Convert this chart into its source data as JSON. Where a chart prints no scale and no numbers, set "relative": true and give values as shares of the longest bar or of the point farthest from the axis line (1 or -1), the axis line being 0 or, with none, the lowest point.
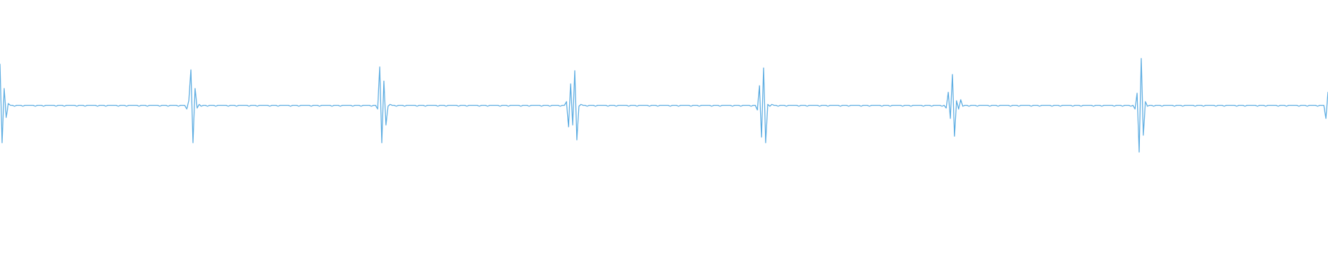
{
  "chart_data": {
    "type": "line",
    "relative": true,
    "color": "#5dade2",
    "categories": [
      null,
      null,
      null,
      null,
      null,
      null,
      null,
      null,
      null,
      null,
      null,
      null,
      null,
      null,
      null,
      null,
      null,
      null,
      null,
      null,
      null,
      null,
      null,
      null,
      null,
      null,
      null,
      null,
      null,
      null,
      null,
      null,
      null,
      null,
      null,
      null,
      null,
      null,
      null,
      null,
      null,
      null,
      null,
      null,
      null,
      null,
      null,
      null,
      null,
      null,
      null,
      null,
      null,
      null,
      null,
      null,
      null,
      null,
      null,
      null,
      null,
      null,
      null,
      null,
      null,
      null,
      null,
      null,
      null,
      null,
      null,
      null,
      null,
      null,
      null,
      null,
      null,
      null,
      null,
      null,
      null,
      null,
      null,
      null,
      null,
      null,
      null,
      null,
      null,
      null,
      null,
      null,
      null,
      null,
      null,
      null,
      null,
      null,
      null,
      null,
      null,
      null,
      null,
      null,
      null,
      null,
      null,
      null,
      null,
      null,
      null,
      null,
      null,
      null,
      null,
      null,
      null,
      null,
      null,
      null,
      null,
      null,
      null,
      null,
      null,
      null,
      null,
      null,
      null,
      null,
      null,
      null,
      null,
      null,
      null,
      null,
      null,
      null,
      null,
      null,
      null,
      null,
      null,
      null,
      null,
      null,
      null,
      null,
      null,
      null,
      null,
      null,
      null,
      null,
      null,
      null,
      null,
      null,
      null,
      null,
      null,
      null,
      null,
      null,
      null,
      null,
      null,
      null,
      null,
      null,
      null,
      null,
      null,
      null,
      null,
      null,
      null,
      null,
      null,
      null,
      null,
      null,
      null,
      null,
      null,
      null,
      null,
      null,
      null,
      null,
      null,
      null,
      null,
      null,
      null,
      null,
      null,
      null,
      null,
      null,
      null,
      null,
      null,
      null,
      null,
      null,
      null,
      null,
      null,
      null,
      null,
      null,
      null,
      null,
      null,
      null,
      null,
      null,
      null,
      null,
      null,
      null,
      null,
      null,
      null,
      null,
      null,
      null,
      null,
      null,
      null,
      null,
      null,
      null,
      null,
      null,
      null,
      null,
      null,
      null,
      null,
      null,
      null,
      null,
      null,
      null,
      null,
      null,
      null,
      null,
      null,
      null,
      null,
      null,
      null,
      null,
      null,
      null,
      null,
      null,
      null,
      null,
      null,
      null,
      null,
      null,
      null,
      null,
      null,
      null,
      null,
      null,
      null,
      null,
      null,
      null,
      null,
      null,
      null,
      null,
      null,
      null,
      null,
      null,
      null,
      null,
      null,
      null,
      null,
      null,
      null,
      null,
      null,
      null,
      null,
      null,
      null,
      null,
      null,
      null,
      null,
      null,
      null,
      null,
      null,
      null,
      null,
      null,
      null,
      null,
      null,
      null,
      null,
      null,
      null,
      null,
      null,
      null,
      null,
      null,
      null,
      null,
      null,
      null,
      null,
      null,
      null,
      null,
      null,
      null,
      null,
      null,
      null,
      null,
      null,
      null,
      null,
      null,
      null,
      null,
      null,
      null,
      null,
      null,
      null,
      null,
      null,
      null,
      null,
      null,
      null,
      null,
      null,
      null,
      null,
      null,
      null,
      null,
      null,
      null,
      null,
      null,
      null,
      null,
      null,
      null,
      null,
      null,
      null,
      null,
      null,
      null,
      null,
      null,
      null,
      null,
      null,
      null,
      null,
      null,
      null,
      null,
      null,
      null,
      null,
      null,
      null,
      null,
      null,
      null,
      null,
      null,
      null,
      null,
      null,
      null,
      null,
      null,
      null,
      null,
      null,
      null,
      null,
      null,
      null,
      null,
      null,
      null,
      null,
      null,
      null,
      null,
      null,
      null,
      null,
      null,
      null,
      null,
      null,
      null,
      null,
      null,
      null,
      null,
      null,
      null,
      null,
      null,
      null,
      null,
      null,
      null,
      null,
      null,
      null,
      null,
      null,
      null,
      null,
      null,
      null,
      null,
      null,
      null,
      null,
      null,
      null,
      null,
      null,
      null,
      null,
      null,
      null,
      null,
      null,
      null,
      null,
      null,
      null,
      null,
      null,
      null,
      null,
      null,
      null,
      null,
      null,
      null,
      null,
      null,
      null,
      null,
      null,
      null,
      null,
      null,
      null,
      null,
      null,
      null,
      null,
      null,
      null,
      null,
      null,
      null,
      null,
      null,
      null,
      null,
      null,
      null,
      null,
      null,
      null,
      null,
      null,
      null,
      null,
      null,
      null,
      null,
      null,
      null,
      null,
      null,
      null,
      null,
      null,
      null,
      null,
      null,
      null,
      null,
      null,
      null,
      null,
      null,
      null,
      null,
      null,
      null,
      null,
      null,
      null,
      null,
      null,
      null,
      null,
      null,
      null,
      null,
      null,
      null,
      null,
      null,
      null,
      null,
      null,
      null,
      null,
      null,
      null,
      null,
      null,
      null,
      null,
      null,
      null,
      null,
      null,
      null,
      null,
      null,
      null,
      null,
      null,
      null,
      null,
      null,
      null,
      null,
      null,
      null,
      null,
      null,
      null,
      null,
      null,
      null,
      null,
      null,
      null,
      null,
      null,
      null,
      null,
      null,
      null,
      null,
      null,
      null,
      null,
      null,
      null,
      null,
      null,
      null,
      null,
      null,
      null,
      null,
      null,
      null,
      null,
      null,
      null,
      null,
      null,
      null,
      null,
      null,
      null,
      null,
      null,
      null,
      null,
      null,
      null,
      null,
      null,
      null,
      null,
      null,
      null,
      null,
      null,
      null,
      null,
      null,
      null,
      null,
      null,
      null,
      null,
      null,
      null,
      null,
      null,
      null,
      null,
      null,
      null,
      null,
      null,
      null,
      null,
      null,
      null,
      null,
      null
    ],
    "values": [
      0.94,
      0.1,
      0.68,
      0.37,
      0.52,
      0.5,
      0.5,
      0.49,
      0.5,
      0.5,
      0.5,
      0.49,
      0.5,
      0.5,
      0.5,
      0.5,
      0.5,
      0.49,
      0.5,
      0.5,
      0.5,
      0.49,
      0.5,
      0.5,
      0.5,
      0.5,
      0.5,
      0.49,
      0.5,
      0.5,
      0.5,
      0.49,
      0.5,
      0.5,
      0.5,
      0.5,
      0.5,
      0.49,
      0.5,
      0.5,
      0.5,
      0.49,
      0.5,
      0.5,
      0.5,
      0.5,
      0.5,
      0.49,
      0.5,
      0.5,
      0.5,
      0.49,
      0.5,
      0.5,
      0.5,
      0.5,
      0.5,
      0.49,
      0.5,
      0.5,
      0.5,
      0.49,
      0.5,
      0.5,
      0.5,
      0.5,
      0.5,
      0.49,
      0.5,
      0.5,
      0.5,
      0.49,
      0.5,
      0.5,
      0.5,
      0.5,
      0.5,
      0.49,
      0.5,
      0.5,
      0.5,
      0.49,
      0.5,
      0.5,
      0.5,
      0.5,
      0.49,
      0.5,
      0.5,
      0.5,
      0.46,
      0.55,
      0.88,
      0.1,
      0.68,
      0.47,
      0.51,
      0.49,
      0.5,
      0.5,
      0.49,
      0.5,
      0.5,
      0.5,
      0.49,
      0.5,
      0.5,
      0.5,
      0.5,
      0.5,
      0.49,
      0.5,
      0.5,
      0.5,
      0.49,
      0.5,
      0.5,
      0.5,
      0.5,
      0.5,
      0.49,
      0.5,
      0.5,
      0.5,
      0.49,
      0.5,
      0.5,
      0.5,
      0.5,
      0.5,
      0.49,
      0.5,
      0.5,
      0.5,
      0.49,
      0.5,
      0.5,
      0.5,
      0.5,
      0.5,
      0.49,
      0.5,
      0.5,
      0.5,
      0.49,
      0.5,
      0.5,
      0.5,
      0.5,
      0.5,
      0.49,
      0.5,
      0.5,
      0.5,
      0.49,
      0.5,
      0.5,
      0.5,
      0.5,
      0.5,
      0.49,
      0.5,
      0.5,
      0.5,
      0.49,
      0.5,
      0.5,
      0.5,
      0.5,
      0.5,
      0.49,
      0.5,
      0.5,
      0.5,
      0.49,
      0.5,
      0.5,
      0.5,
      0.5,
      0.49,
      0.5,
      0.5,
      0.46,
      0.91,
      0.1,
      0.76,
      0.29,
      0.49,
      0.51,
      0.5,
      0.5,
      0.49,
      0.5,
      0.5,
      0.5,
      0.49,
      0.5,
      0.5,
      0.5,
      0.5,
      0.5,
      0.49,
      0.5,
      0.5,
      0.5,
      0.49,
      0.5,
      0.5,
      0.5,
      0.5,
      0.5,
      0.49,
      0.5,
      0.5,
      0.5,
      0.49,
      0.5,
      0.5,
      0.5,
      0.5,
      0.5,
      0.49,
      0.5,
      0.5,
      0.5,
      0.49,
      0.5,
      0.5,
      0.5,
      0.5,
      0.5,
      0.49,
      0.5,
      0.5,
      0.5,
      0.49,
      0.5,
      0.5,
      0.5,
      0.5,
      0.5,
      0.49,
      0.5,
      0.5,
      0.5,
      0.49,
      0.5,
      0.5,
      0.5,
      0.5,
      0.5,
      0.49,
      0.5,
      0.5,
      0.5,
      0.49,
      0.5,
      0.5,
      0.5,
      0.5,
      0.5,
      0.49,
      0.5,
      0.5,
      0.5,
      0.49,
      0.5,
      0.5,
      0.5,
      0.5,
      0.49,
      0.5,
      0.5,
      0.54,
      0.27,
      0.73,
      0.29,
      0.87,
      0.13,
      0.49,
      0.51,
      0.5,
      0.5,
      0.49,
      0.5,
      0.5,
      0.5,
      0.49,
      0.5,
      0.5,
      0.5,
      0.5,
      0.5,
      0.49,
      0.5,
      0.5,
      0.5,
      0.49,
      0.5,
      0.5,
      0.5,
      0.5,
      0.5,
      0.49,
      0.5,
      0.5,
      0.5,
      0.49,
      0.5,
      0.5,
      0.5,
      0.5,
      0.5,
      0.49,
      0.5,
      0.5,
      0.5,
      0.49,
      0.5,
      0.5,
      0.5,
      0.5,
      0.5,
      0.49,
      0.5,
      0.5,
      0.5,
      0.49,
      0.5,
      0.5,
      0.5,
      0.5,
      0.5,
      0.49,
      0.5,
      0.5,
      0.5,
      0.49,
      0.5,
      0.5,
      0.5,
      0.5,
      0.5,
      0.49,
      0.5,
      0.5,
      0.5,
      0.49,
      0.5,
      0.5,
      0.5,
      0.5,
      0.5,
      0.49,
      0.5,
      0.5,
      0.5,
      0.49,
      0.5,
      0.5,
      0.5,
      0.5,
      0.49,
      0.5,
      0.5,
      0.45,
      0.71,
      0.16,
      0.9,
      0.1,
      0.51,
      0.49,
      0.51,
      0.5,
      0.5,
      0.49,
      0.5,
      0.5,
      0.5,
      0.49,
      0.5,
      0.5,
      0.5,
      0.5,
      0.5,
      0.49,
      0.5,
      0.5,
      0.5,
      0.49,
      0.5,
      0.5,
      0.5,
      0.5,
      0.5,
      0.49,
      0.5,
      0.5,
      0.5,
      0.49,
      0.5,
      0.5,
      0.5,
      0.5,
      0.5,
      0.49,
      0.5,
      0.5,
      0.5,
      0.49,
      0.5,
      0.5,
      0.5,
      0.5,
      0.5,
      0.49,
      0.5,
      0.5,
      0.5,
      0.49,
      0.5,
      0.5,
      0.5,
      0.5,
      0.5,
      0.49,
      0.5,
      0.5,
      0.5,
      0.49,
      0.5,
      0.5,
      0.5,
      0.5,
      0.5,
      0.49,
      0.5,
      0.5,
      0.5,
      0.49,
      0.5,
      0.5,
      0.5,
      0.5,
      0.5,
      0.49,
      0.5,
      0.5,
      0.5,
      0.49,
      0.5,
      0.5,
      0.5,
      0.5,
      0.49,
      0.5,
      0.47,
      0.64,
      0.36,
      0.83,
      0.17,
      0.55,
      0.46,
      0.56,
      0.49,
      0.5,
      0.5,
      0.49,
      0.5,
      0.5,
      0.5,
      0.49,
      0.5,
      0.5,
      0.5,
      0.5,
      0.5,
      0.49,
      0.5,
      0.5,
      0.5,
      0.49,
      0.5,
      0.5,
      0.5,
      0.5,
      0.5,
      0.49,
      0.5,
      0.5,
      0.5,
      0.49,
      0.5,
      0.5,
      0.5,
      0.5,
      0.5,
      0.49,
      0.5,
      0.5,
      0.5,
      0.49,
      0.5,
      0.5,
      0.5,
      0.5,
      0.5,
      0.49,
      0.5,
      0.5,
      0.5,
      0.49,
      0.5,
      0.5,
      0.5,
      0.5,
      0.5,
      0.49,
      0.5,
      0.5,
      0.5,
      0.49,
      0.5,
      0.5,
      0.5,
      0.5,
      0.5,
      0.49,
      0.5,
      0.5,
      0.5,
      0.49,
      0.5,
      0.5,
      0.5,
      0.5,
      0.5,
      0.49,
      0.5,
      0.5,
      0.5,
      0.49,
      0.5,
      0.5,
      0.5,
      0.49,
      0.5,
      0.46,
      0.63,
      0,
      1,
      0.18,
      0.54,
      0.49,
      0.5,
      0.5,
      0.49,
      0.5,
      0.5,
      0.5,
      0.49,
      0.5,
      0.5,
      0.5,
      0.5,
      0.5,
      0.49,
      0.5,
      0.5,
      0.5,
      0.49,
      0.5,
      0.5,
      0.5,
      0.5,
      0.5,
      0.49,
      0.5,
      0.5,
      0.5,
      0.49,
      0.5,
      0.5,
      0.5,
      0.5,
      0.5,
      0.49,
      0.5,
      0.5,
      0.5,
      0.49,
      0.5,
      0.5,
      0.5,
      0.5,
      0.5,
      0.49,
      0.5,
      0.5,
      0.5,
      0.49,
      0.5,
      0.5,
      0.5,
      0.5,
      0.5,
      0.49,
      0.5,
      0.5,
      0.5,
      0.49,
      0.5,
      0.5,
      0.5,
      0.5,
      0.5,
      0.49,
      0.5,
      0.5,
      0.5,
      0.49,
      0.5,
      0.5,
      0.5,
      0.5,
      0.5,
      0.49,
      0.5,
      0.5,
      0.5,
      0.49,
      0.5,
      0.5,
      0.5,
      0.5,
      0.49,
      0.5,
      0.5,
      0.5,
      0.36,
      0.64
    ]
  }
}
